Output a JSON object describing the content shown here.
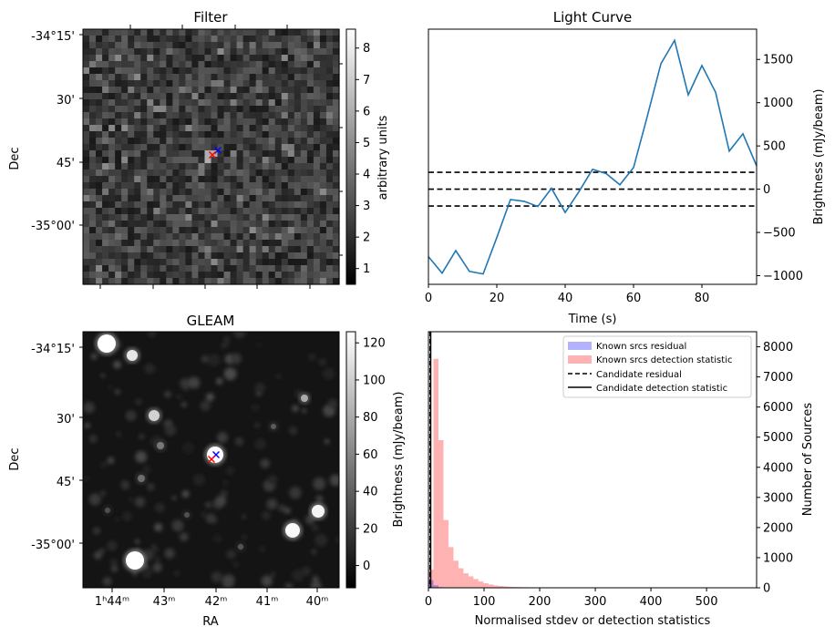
{
  "filter_panel": {
    "title": "Filter",
    "ylabel": "Dec",
    "yticks": [
      "-34°15'",
      "30'",
      "45'",
      "-35°00'"
    ],
    "colorbar": {
      "label": "arbitrary units",
      "ticks": [
        "1",
        "2",
        "3",
        "4",
        "5",
        "6",
        "7",
        "8"
      ],
      "range": [
        0.5,
        8.6
      ],
      "colormap": "gray"
    },
    "markers": [
      {
        "symbol": "x",
        "color": "#0000ff"
      },
      {
        "symbol": "x",
        "color": "#ff0000"
      }
    ]
  },
  "gleam_panel": {
    "title": "GLEAM",
    "xlabel": "RA",
    "ylabel": "Dec",
    "xticks": [
      "1ʰ44ᵐ",
      "43ᵐ",
      "42ᵐ",
      "41ᵐ",
      "40ᵐ"
    ],
    "yticks": [
      "-34°15'",
      "30'",
      "45'",
      "-35°00'"
    ],
    "colorbar": {
      "label": "Brightness (mJy/beam)",
      "ticks": [
        "0",
        "20",
        "40",
        "60",
        "80",
        "100",
        "120"
      ],
      "range": [
        -12,
        126
      ],
      "colormap": "gray"
    },
    "markers": [
      {
        "symbol": "x",
        "color": "#0000ff"
      },
      {
        "symbol": "x",
        "color": "#ff0000"
      }
    ]
  },
  "chart_data": [
    {
      "type": "line",
      "title": "Light Curve",
      "xlabel": "Time (s)",
      "ylabel": "Brightness (mJy/beam)",
      "xlim": [
        0,
        96
      ],
      "ylim": [
        -1100,
        1850
      ],
      "xticks": [
        0,
        20,
        40,
        60,
        80
      ],
      "yticks": [
        -1000,
        -500,
        0,
        500,
        1000,
        1500
      ],
      "color": "#1f77b4",
      "x": [
        0,
        4,
        8,
        12,
        16,
        20,
        24,
        28,
        32,
        36,
        40,
        44,
        48,
        52,
        56,
        60,
        64,
        68,
        72,
        76,
        80,
        84,
        88,
        92,
        96
      ],
      "values": [
        -780,
        -970,
        -710,
        -950,
        -980,
        -560,
        -120,
        -140,
        -200,
        10,
        -270,
        -30,
        230,
        180,
        50,
        250,
        840,
        1450,
        1720,
        1090,
        1430,
        1120,
        440,
        640,
        270
      ],
      "hlines": [
        {
          "y": 195,
          "style": "dashed",
          "color": "#000000"
        },
        {
          "y": 0,
          "style": "dashed",
          "color": "#000000"
        },
        {
          "y": -195,
          "style": "dashed",
          "color": "#000000"
        }
      ]
    },
    {
      "type": "bar",
      "xlabel": "Normalised stdev or detection statistics",
      "ylabel": "Number of Sources",
      "xlim": [
        0,
        590
      ],
      "ylim": [
        0,
        8500
      ],
      "xticks": [
        0,
        100,
        200,
        300,
        400,
        500
      ],
      "yticks": [
        0,
        1000,
        2000,
        3000,
        4000,
        5000,
        6000,
        7000,
        8000
      ],
      "legend_position": "top-right",
      "bin_width": 9,
      "bin_start": 0,
      "series": [
        {
          "name": "Known srcs residual",
          "color": "#0000ff",
          "alpha": 0.3,
          "values": [
            250,
            80,
            20
          ]
        },
        {
          "name": "Known srcs detection statistic",
          "color": "#ff0000",
          "alpha": 0.3,
          "values": [
            600,
            7600,
            4900,
            2250,
            1350,
            900,
            650,
            480,
            380,
            290,
            210,
            150,
            110,
            80,
            60,
            45,
            35,
            28,
            22,
            18,
            15,
            12,
            10,
            9,
            8,
            7,
            6,
            6,
            5,
            5,
            5,
            4,
            4,
            4,
            4,
            3,
            3,
            3,
            3,
            3,
            3,
            3,
            2,
            2,
            2,
            2,
            2,
            2,
            2,
            2,
            2,
            2,
            2,
            2,
            2,
            2,
            2,
            2,
            2,
            2,
            2,
            2,
            2,
            2
          ]
        }
      ],
      "vlines": [
        {
          "name": "Candidate residual",
          "x": 3,
          "style": "dashed",
          "color": "#000000"
        },
        {
          "name": "Candidate detection statistic",
          "x": 4,
          "style": "solid",
          "color": "#000000"
        }
      ]
    }
  ]
}
